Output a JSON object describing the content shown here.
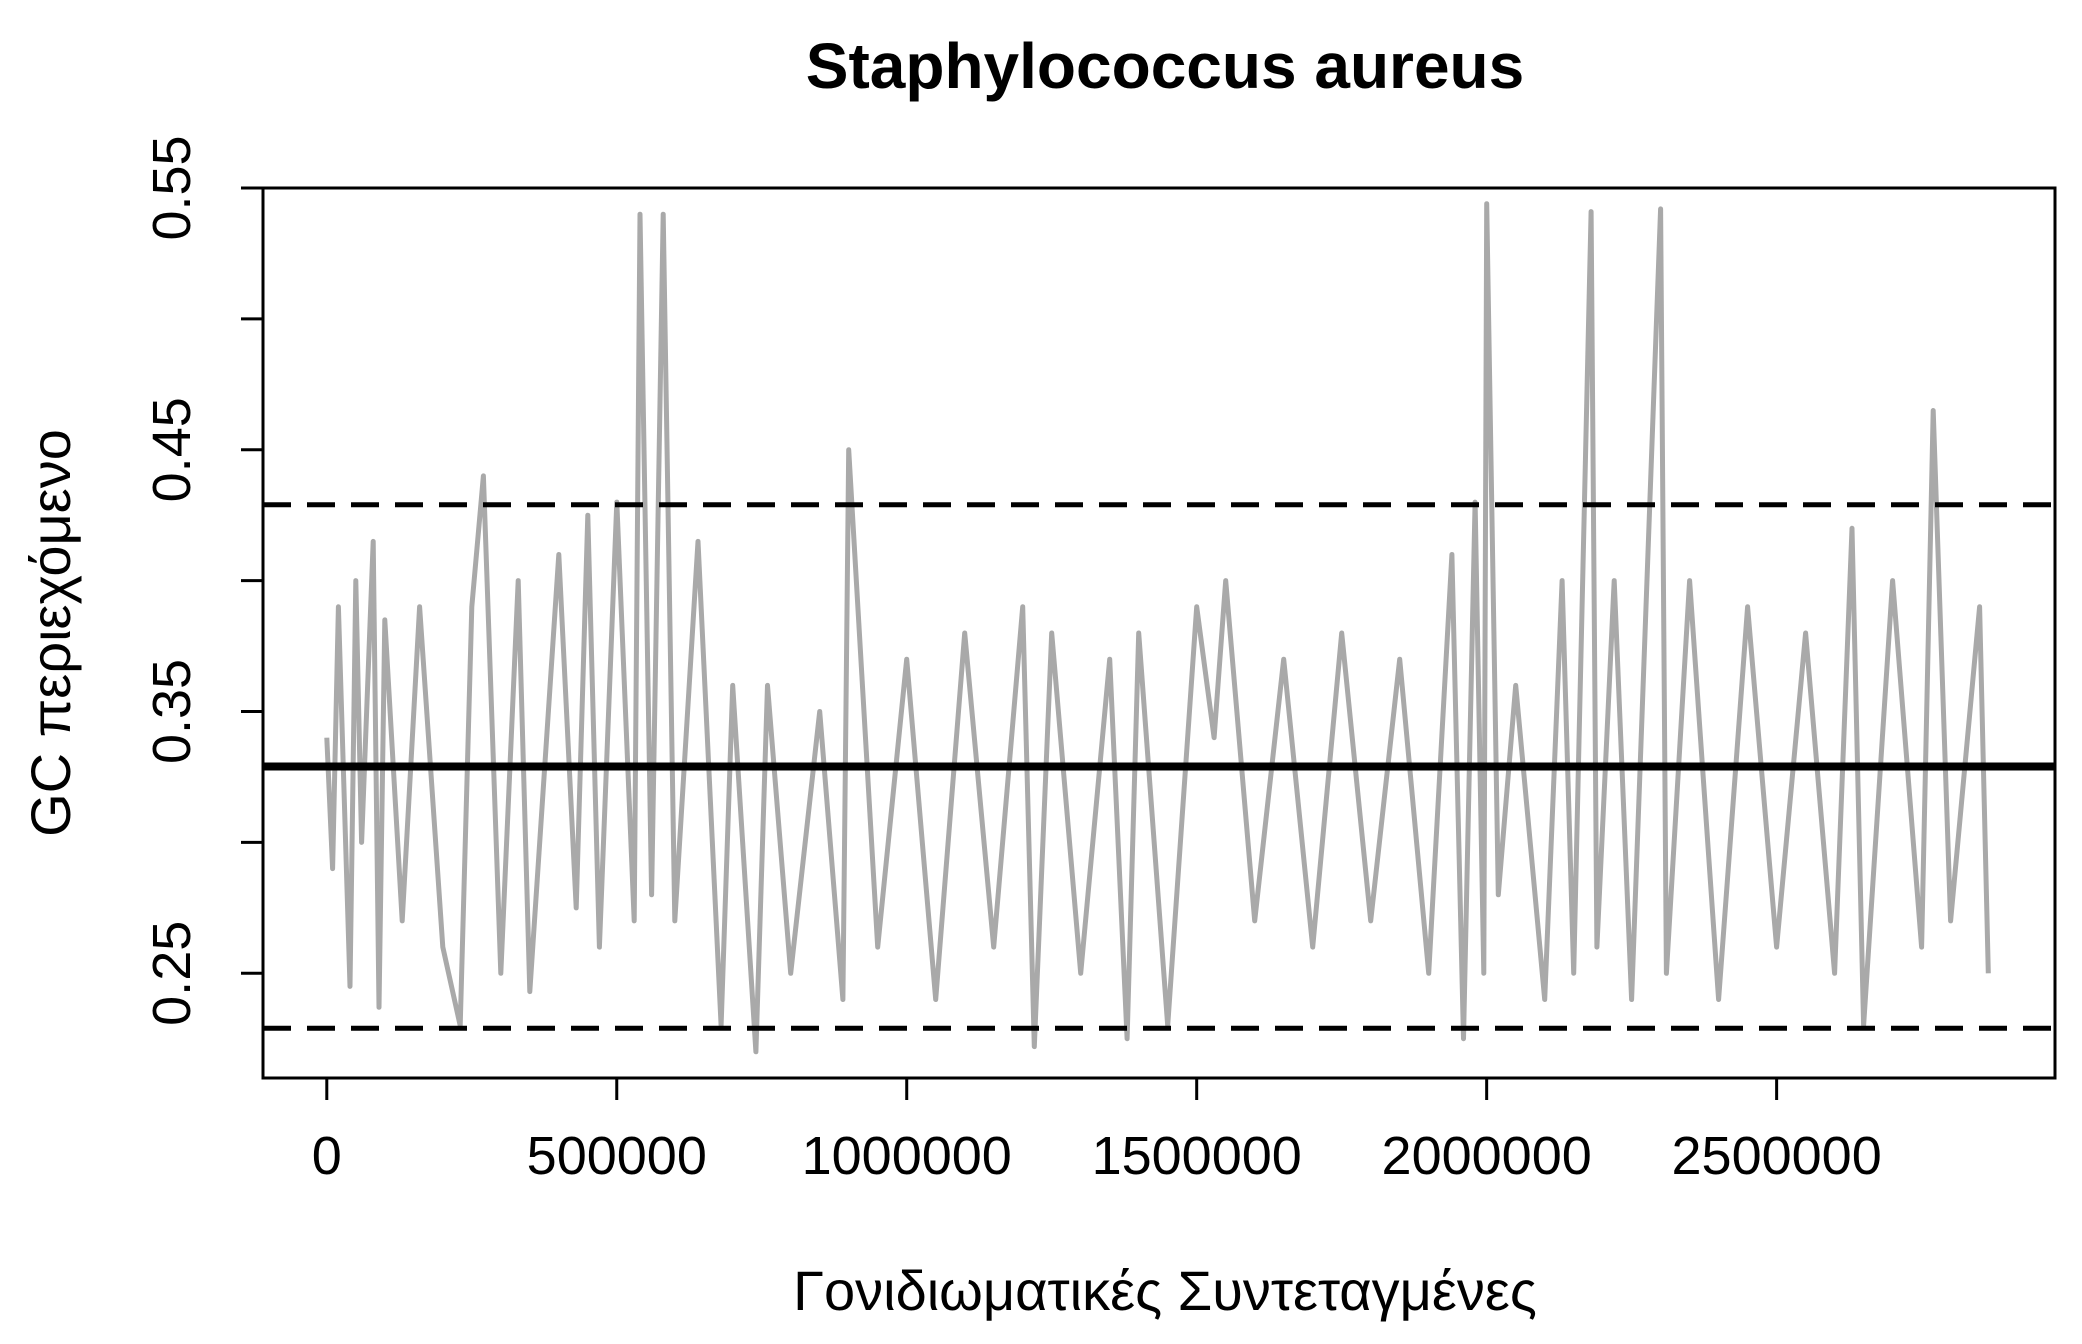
{
  "chart_data": {
    "type": "line",
    "title": "Staphylococcus aureus",
    "xlabel": "Γονιδιωματικές Συντεταγμένες",
    "ylabel": "GC περιεχόμενο",
    "xlim": [
      -110000,
      2980000
    ],
    "ylim": [
      0.21,
      0.55
    ],
    "x_ticks": [
      0,
      500000,
      1000000,
      1500000,
      2000000,
      2500000
    ],
    "x_tick_labels": [
      "0",
      "500000",
      "1000000",
      "1500000",
      "2000000",
      "2500000"
    ],
    "y_ticks": [
      0.25,
      0.3,
      0.35,
      0.4,
      0.45,
      0.5,
      0.55
    ],
    "y_tick_labels": [
      "0.25",
      "",
      "0.35",
      "",
      "0.45",
      "",
      "0.55"
    ],
    "grid": false,
    "reference_lines": [
      {
        "y": 0.329,
        "style": "solid"
      },
      {
        "y": 0.429,
        "style": "dashed"
      },
      {
        "y": 0.229,
        "style": "dashed"
      }
    ],
    "series": [
      {
        "color": "#a9a9a9",
        "x": [
          0,
          10000,
          20000,
          40000,
          50000,
          60000,
          80000,
          90000,
          100000,
          130000,
          160000,
          200000,
          230000,
          250000,
          270000,
          300000,
          330000,
          350000,
          400000,
          430000,
          450000,
          470000,
          500000,
          530000,
          540000,
          560000,
          580000,
          600000,
          640000,
          680000,
          700000,
          740000,
          760000,
          800000,
          850000,
          890000,
          900000,
          950000,
          1000000,
          1050000,
          1100000,
          1150000,
          1200000,
          1220000,
          1250000,
          1300000,
          1350000,
          1380000,
          1400000,
          1450000,
          1500000,
          1530000,
          1550000,
          1600000,
          1650000,
          1700000,
          1750000,
          1800000,
          1850000,
          1900000,
          1940000,
          1960000,
          1980000,
          1995000,
          2000000,
          2020000,
          2050000,
          2100000,
          2130000,
          2150000,
          2180000,
          2190000,
          2220000,
          2250000,
          2300000,
          2310000,
          2350000,
          2400000,
          2450000,
          2500000,
          2550000,
          2600000,
          2630000,
          2650000,
          2700000,
          2750000,
          2770000,
          2800000,
          2850000,
          2865000
        ],
        "y": [
          0.34,
          0.29,
          0.39,
          0.245,
          0.4,
          0.3,
          0.415,
          0.237,
          0.385,
          0.27,
          0.39,
          0.26,
          0.23,
          0.39,
          0.44,
          0.25,
          0.4,
          0.243,
          0.41,
          0.275,
          0.425,
          0.26,
          0.43,
          0.27,
          0.54,
          0.28,
          0.54,
          0.27,
          0.415,
          0.23,
          0.36,
          0.22,
          0.36,
          0.25,
          0.35,
          0.24,
          0.45,
          0.26,
          0.37,
          0.24,
          0.38,
          0.26,
          0.39,
          0.222,
          0.38,
          0.25,
          0.37,
          0.225,
          0.38,
          0.23,
          0.39,
          0.34,
          0.4,
          0.27,
          0.37,
          0.26,
          0.38,
          0.27,
          0.37,
          0.25,
          0.41,
          0.225,
          0.43,
          0.25,
          0.544,
          0.28,
          0.36,
          0.24,
          0.4,
          0.25,
          0.541,
          0.26,
          0.4,
          0.24,
          0.542,
          0.25,
          0.4,
          0.24,
          0.39,
          0.26,
          0.38,
          0.25,
          0.42,
          0.23,
          0.4,
          0.26,
          0.465,
          0.27,
          0.39,
          0.25
        ]
      }
    ]
  }
}
